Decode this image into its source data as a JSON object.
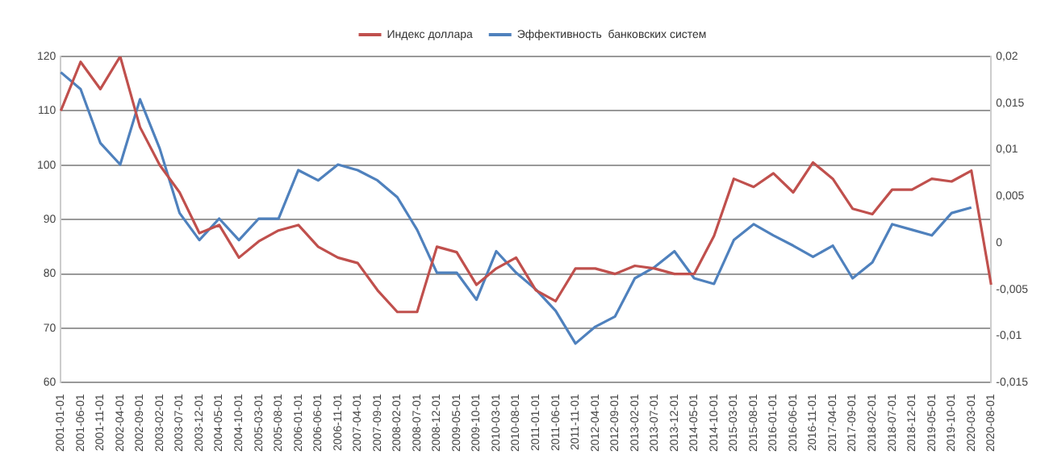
{
  "chart_data": {
    "type": "line",
    "categories": [
      "2001-01-01",
      "2001-06-01",
      "2001-11-01",
      "2002-04-01",
      "2002-09-01",
      "2003-02-01",
      "2003-07-01",
      "2003-12-01",
      "2004-05-01",
      "2004-10-01",
      "2005-03-01",
      "2005-08-01",
      "2006-01-01",
      "2006-06-01",
      "2006-11-01",
      "2007-04-01",
      "2007-09-01",
      "2008-02-01",
      "2008-07-01",
      "2008-12-01",
      "2009-05-01",
      "2009-10-01",
      "2010-03-01",
      "2010-08-01",
      "2011-01-01",
      "2011-06-01",
      "2011-11-01",
      "2012-04-01",
      "2012-09-01",
      "2013-02-01",
      "2013-07-01",
      "2013-12-01",
      "2014-05-01",
      "2014-10-01",
      "2015-03-01",
      "2015-08-01",
      "2016-01-01",
      "2016-06-01",
      "2016-11-01",
      "2017-04-01",
      "2017-09-01",
      "2018-02-01",
      "2018-07-01",
      "2018-12-01",
      "2019-05-01",
      "2019-10-01",
      "2020-03-01",
      "2020-08-01"
    ],
    "series": [
      {
        "name": "Индекс доллара",
        "color": "#c0504d",
        "values": [
          110,
          119,
          114,
          120,
          107,
          100,
          95,
          87.5,
          89,
          83,
          86,
          88,
          89,
          85,
          83,
          82,
          77,
          73,
          73,
          85,
          84,
          78,
          81,
          83,
          77,
          75,
          81,
          81,
          80,
          81.5,
          81,
          80,
          80,
          87,
          97.5,
          96,
          98.5,
          95,
          100.5,
          97.5,
          92,
          91,
          95.5,
          95.5,
          97.5,
          97,
          99,
          78
        ]
      },
      {
        "name": "Эффективность  банковских систем",
        "color": "#4f81bd",
        "axis": "y2",
        "values": [
          0.0183,
          0.0165,
          0.0107,
          0.0084,
          0.0154,
          0.0101,
          0.0032,
          0.0003,
          0.0026,
          0.0003,
          0.0026,
          0.0026,
          0.0078,
          0.0067,
          0.0084,
          0.0078,
          0.0067,
          0.0049,
          0.0014,
          -0.0032,
          -0.0032,
          -0.0061,
          -0.0009,
          -0.0032,
          -0.005,
          -0.0073,
          -0.0108,
          -0.009,
          -0.0079,
          -0.0038,
          -0.0026,
          -0.0009,
          -0.0038,
          -0.0044,
          0.0003,
          0.002,
          0.0008,
          -0.0003,
          -0.0015,
          -0.0003,
          -0.0038,
          -0.0021,
          0.002,
          0.0014,
          0.0008,
          0.0032,
          0.0038,
          null
        ]
      }
    ],
    "ylim": [
      60,
      120
    ],
    "yticks": [
      60,
      70,
      80,
      90,
      100,
      110,
      120
    ],
    "y2lim": [
      -0.015,
      0.02
    ],
    "y2ticks": [
      {
        "value": -0.015,
        "label": "-0,015"
      },
      {
        "value": -0.01,
        "label": "-0,01"
      },
      {
        "value": -0.005,
        "label": "-0,005"
      },
      {
        "value": 0,
        "label": "0"
      },
      {
        "value": 0.005,
        "label": "0,005"
      },
      {
        "value": 0.01,
        "label": "0,01"
      },
      {
        "value": 0.015,
        "label": "0,015"
      },
      {
        "value": 0.02,
        "label": "0,02"
      }
    ],
    "grid": "y",
    "legend": "top",
    "marker": "none",
    "line_style": "solid"
  }
}
